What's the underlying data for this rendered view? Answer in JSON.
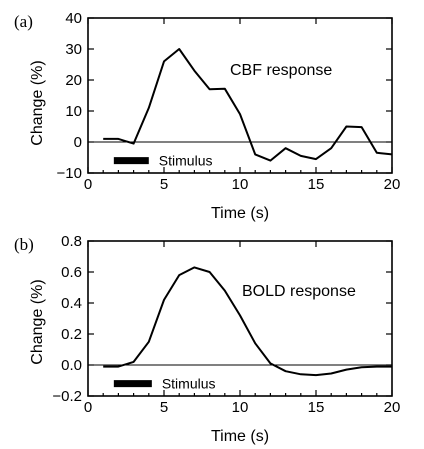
{
  "chart_data": [
    {
      "type": "line",
      "panel_label": "(a)",
      "xlabel": "Time (s)",
      "ylabel": "Change (%)",
      "xlim": [
        0,
        20
      ],
      "ylim": [
        -10,
        40
      ],
      "xticks": [
        0,
        5,
        10,
        15,
        20
      ],
      "yticks": [
        -10,
        0,
        10,
        20,
        30,
        40
      ],
      "zero_line": true,
      "annotation": "CBF response",
      "stimulus": {
        "label": "Stimulus",
        "x": [
          1.7,
          4.0
        ],
        "y": -6
      },
      "series": [
        {
          "x": [
            1,
            2,
            3,
            4,
            5,
            6,
            7,
            8,
            9,
            10,
            11,
            12,
            13,
            14,
            15,
            16,
            17,
            18,
            19,
            20
          ],
          "values": [
            1,
            1,
            -0.5,
            11,
            26,
            30,
            23,
            17,
            17.2,
            9,
            -4,
            -6,
            -2,
            -4.5,
            -5.5,
            -2,
            5,
            4.8,
            -3.5,
            -4
          ]
        }
      ]
    },
    {
      "type": "line",
      "panel_label": "(b)",
      "xlabel": "Time (s)",
      "ylabel": "Change (%)",
      "xlim": [
        0,
        20
      ],
      "ylim": [
        -0.2,
        0.8
      ],
      "xticks": [
        0,
        5,
        10,
        15,
        20
      ],
      "yticks": [
        -0.2,
        0.0,
        0.2,
        0.4,
        0.6,
        0.8
      ],
      "ytick_labels": [
        "−0.2",
        "0.0",
        "0.2",
        "0.4",
        "0.6",
        "0.8"
      ],
      "zero_line": true,
      "annotation": "BOLD response",
      "stimulus": {
        "label": "Stimulus",
        "x": [
          1.7,
          4.2
        ],
        "y": -0.12
      },
      "series": [
        {
          "x": [
            1,
            2,
            3,
            4,
            5,
            6,
            7,
            8,
            9,
            10,
            11,
            12,
            13,
            14,
            15,
            16,
            17,
            18,
            19,
            20
          ],
          "values": [
            -0.01,
            -0.01,
            0.02,
            0.15,
            0.42,
            0.58,
            0.63,
            0.6,
            0.48,
            0.32,
            0.14,
            0.01,
            -0.04,
            -0.06,
            -0.065,
            -0.055,
            -0.03,
            -0.015,
            -0.01,
            -0.01
          ]
        }
      ]
    }
  ]
}
